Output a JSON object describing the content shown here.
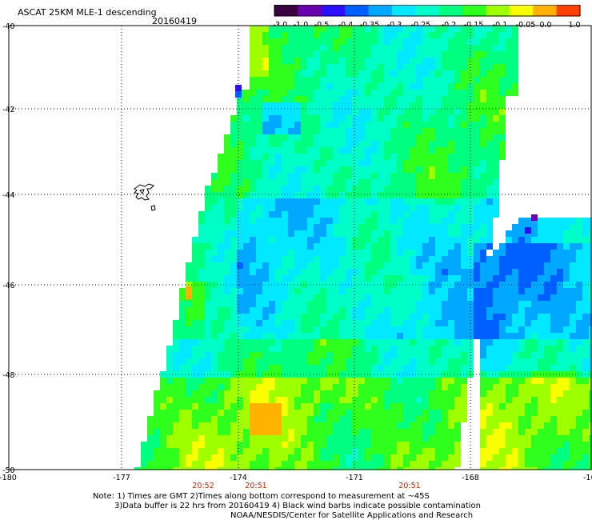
{
  "header": {
    "title": "ASCAT 25KM MLE-1 descending",
    "date": "20160419"
  },
  "colorbar": {
    "tick_labels": [
      "-3.0",
      "-1.0",
      "-0.5",
      "-0.4",
      "-0.35",
      "-0.3",
      "-0.25",
      "-0.2",
      "-0.15",
      "-0.1",
      "-0.05",
      "0.0",
      "1.0"
    ],
    "colors": [
      "#3a0040",
      "#6a00b0",
      "#2a10ff",
      "#0060ff",
      "#00a8ff",
      "#00e8ff",
      "#00ffc8",
      "#00ff80",
      "#30ff20",
      "#a0ff00",
      "#f8ff00",
      "#ffb000",
      "#ff4000"
    ]
  },
  "map": {
    "lat_labels": [
      "-40",
      "-42",
      "-44",
      "-46",
      "-48",
      "-50"
    ],
    "lon_labels": [
      "-180",
      "-177",
      "-174",
      "-171",
      "-168",
      "-16"
    ],
    "time_labels": [
      "20:52",
      "20:51",
      "20:51"
    ],
    "time_color": "#cc2200",
    "grid": "dotted"
  },
  "notes": {
    "line1": "Note: 1) Times are GMT 2)Times along bottom correspond to measurement at ~45S",
    "line2": "3)Data buffer is 22 hrs from 20160419 4) Black wind barbs indicate possible contamination",
    "line3": "NOAA/NESDIS/Center for Satellite Applications and Research"
  }
}
